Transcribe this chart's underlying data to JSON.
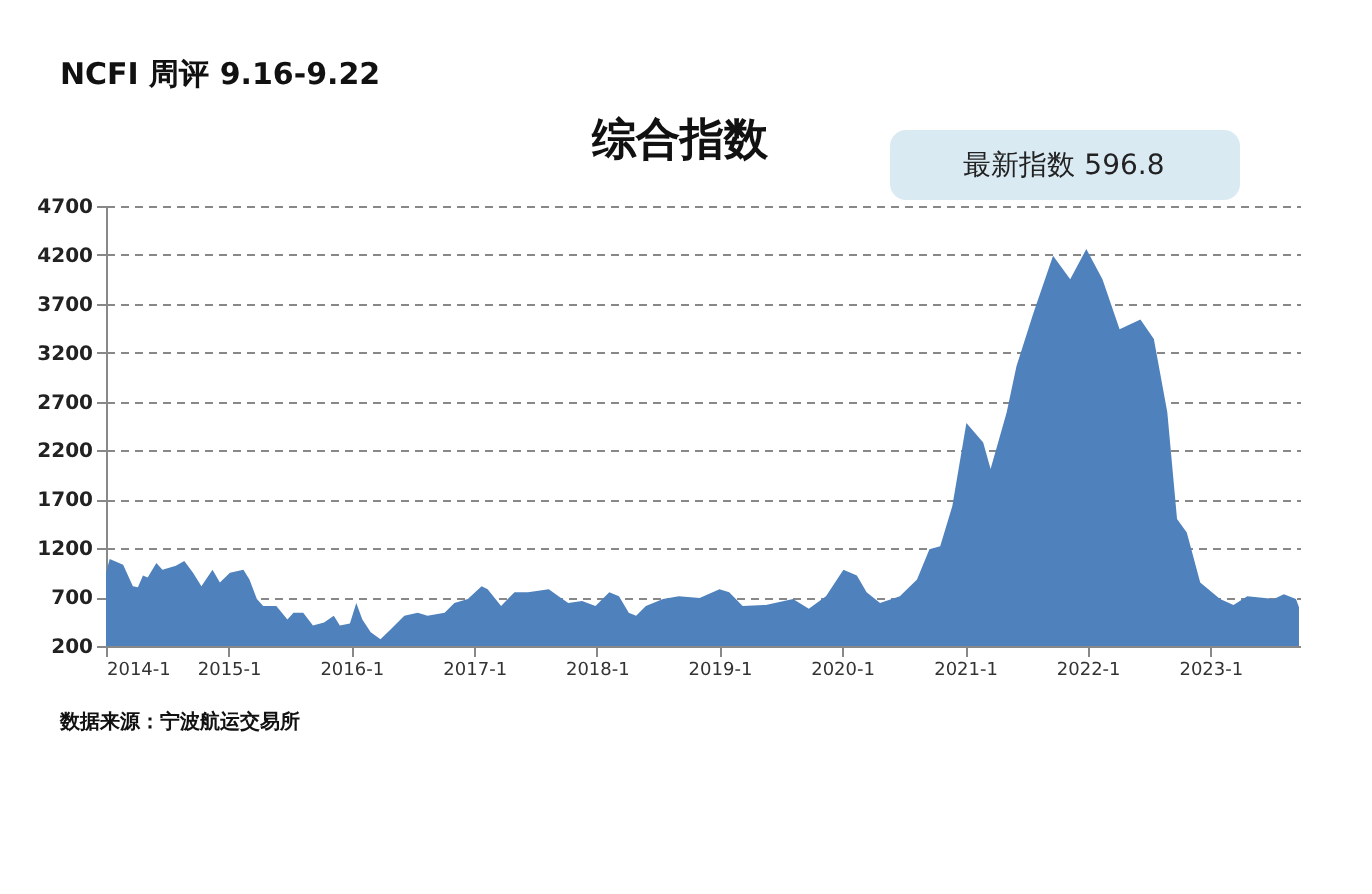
{
  "chart_data": {
    "type": "area",
    "title": "综合指数",
    "annotations": [
      "NCFI 周评 9.16-9.22",
      "最新指数 596.8",
      "数据来源：宁波航运交易所"
    ],
    "x": [
      "2014-01-01",
      "2014-01-12",
      "2014-02-21",
      "2014-03-22",
      "2014-04-06",
      "2014-04-21",
      "2014-05-05",
      "2014-05-31",
      "2014-06-18",
      "2014-07-28",
      "2014-08-22",
      "2014-09-17",
      "2014-10-12",
      "2014-11-14",
      "2014-12-06",
      "2015-01-05",
      "2015-02-14",
      "2015-03-04",
      "2015-03-26",
      "2015-04-14",
      "2015-05-23",
      "2015-06-25",
      "2015-07-13",
      "2015-08-11",
      "2015-09-09",
      "2015-10-12",
      "2015-11-10",
      "2015-11-28",
      "2015-12-28",
      "2016-01-16",
      "2016-02-03",
      "2016-02-28",
      "2016-03-28",
      "2016-04-27",
      "2016-06-07",
      "2016-07-17",
      "2016-08-15",
      "2016-10-05",
      "2016-11-03",
      "2016-12-13",
      "2017-01-23",
      "2017-02-10",
      "2017-03-22",
      "2017-05-01",
      "2017-06-10",
      "2017-08-11",
      "2017-09-09",
      "2017-10-08",
      "2017-11-18",
      "2017-12-28",
      "2018-02-07",
      "2018-03-08",
      "2018-04-06",
      "2018-04-28",
      "2018-05-27",
      "2018-07-17",
      "2018-09-02",
      "2018-11-03",
      "2019-01-01",
      "2019-01-30",
      "2019-03-11",
      "2019-05-19",
      "2019-08-08",
      "2019-09-24",
      "2019-11-14",
      "2020-01-05",
      "2020-02-14",
      "2020-03-14",
      "2020-04-23",
      "2020-06-21",
      "2020-08-11",
      "2020-09-17",
      "2020-10-19",
      "2020-11-24",
      "2021-01-05",
      "2021-02-24",
      "2021-03-18",
      "2021-05-05",
      "2021-06-03",
      "2021-07-24",
      "2021-09-20",
      "2021-11-10",
      "2021-12-28",
      "2022-02-14",
      "2022-04-06",
      "2022-06-07",
      "2022-07-17",
      "2022-08-26",
      "2022-09-24",
      "2022-10-23",
      "2022-12-02",
      "2023-01-30",
      "2023-03-11",
      "2023-04-21",
      "2023-07-09",
      "2023-08-08",
      "2023-09-13",
      "2023-09-22"
    ],
    "series": [
      {
        "color": "#4f81bd",
        "values": [
          950,
          1090,
          1030,
          810,
          800,
          920,
          900,
          1050,
          980,
          1020,
          1070,
          950,
          810,
          980,
          850,
          950,
          980,
          880,
          680,
          610,
          610,
          470,
          540,
          540,
          410,
          440,
          510,
          410,
          430,
          640,
          470,
          340,
          270,
          370,
          510,
          540,
          510,
          540,
          640,
          680,
          810,
          780,
          610,
          750,
          750,
          780,
          710,
          640,
          660,
          610,
          750,
          710,
          540,
          510,
          610,
          680,
          710,
          690,
          780,
          750,
          610,
          620,
          680,
          580,
          710,
          980,
          920,
          750,
          640,
          710,
          880,
          1190,
          1220,
          1630,
          2480,
          2280,
          2010,
          2590,
          3060,
          3610,
          4190,
          3950,
          4260,
          3950,
          3440,
          3540,
          3340,
          2590,
          1500,
          1360,
          850,
          680,
          620,
          710,
          680,
          730,
          680,
          596.8
        ]
      }
    ],
    "xlim": [
      "2014-01-01",
      "2023-09-25"
    ],
    "ylim": [
      200,
      4700
    ],
    "xticks": [
      {
        "value": "2014-01-01",
        "label": "2014-1"
      },
      {
        "value": "2015-01-01",
        "label": "2015-1"
      },
      {
        "value": "2016-01-01",
        "label": "2016-1"
      },
      {
        "value": "2017-01-01",
        "label": "2017-1"
      },
      {
        "value": "2018-01-01",
        "label": "2018-1"
      },
      {
        "value": "2019-01-01",
        "label": "2019-1"
      },
      {
        "value": "2020-01-01",
        "label": "2020-1"
      },
      {
        "value": "2021-01-01",
        "label": "2021-1"
      },
      {
        "value": "2022-01-01",
        "label": "2022-1"
      },
      {
        "value": "2023-01-01",
        "label": "2023-1"
      }
    ],
    "yticks": [
      200,
      700,
      1200,
      1700,
      2200,
      2700,
      3200,
      3700,
      4200,
      4700
    ],
    "grid": "y"
  }
}
